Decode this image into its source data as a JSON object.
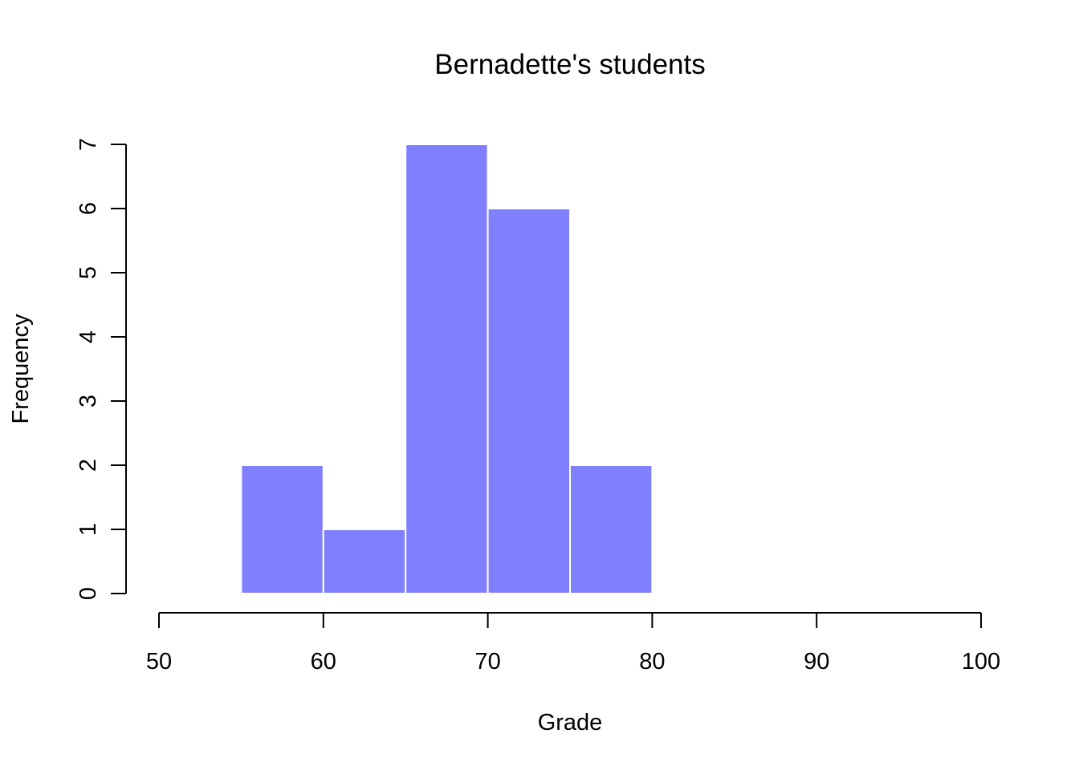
{
  "chart_data": {
    "type": "bar",
    "title": "Bernadette's students",
    "xlabel": "Grade",
    "ylabel": "Frequency",
    "bins": [
      {
        "x0": 55,
        "x1": 60,
        "count": 2
      },
      {
        "x0": 60,
        "x1": 65,
        "count": 1
      },
      {
        "x0": 65,
        "x1": 70,
        "count": 7
      },
      {
        "x0": 70,
        "x1": 75,
        "count": 6
      },
      {
        "x0": 75,
        "x1": 80,
        "count": 2
      }
    ],
    "xlim": [
      50,
      100
    ],
    "ylim": [
      0,
      7
    ],
    "x_ticks": [
      50,
      60,
      70,
      80,
      90,
      100
    ],
    "y_ticks": [
      0,
      1,
      2,
      3,
      4,
      5,
      6,
      7
    ],
    "grid": false,
    "bar_color": "#8080ff",
    "bar_border_color": "#ffffff"
  }
}
